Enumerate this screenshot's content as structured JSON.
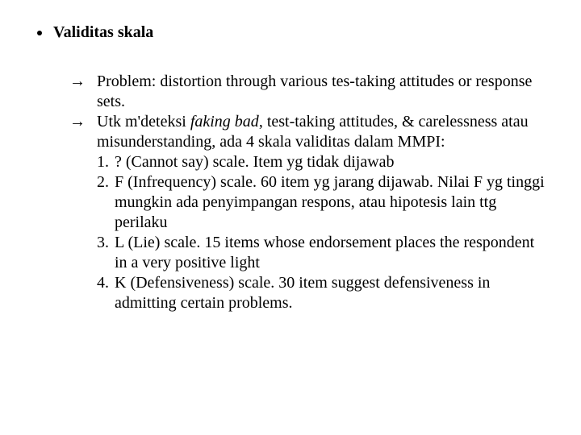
{
  "colors": {
    "background": "#ffffff",
    "text": "#000000"
  },
  "typography": {
    "font_family": "Times New Roman",
    "base_font_size_pt": 15,
    "line_height": 1.25,
    "title_weight": "bold"
  },
  "heading": {
    "text": "Validitas skala"
  },
  "items": [
    {
      "arrow": "→",
      "text": "Problem: distortion through various tes-taking attitudes or response sets."
    },
    {
      "arrow": "→",
      "lead_a": "Utk m'deteksi ",
      "lead_italic": "faking bad",
      "lead_b": ", test-taking attitudes, & carelessness atau misunderstanding, ada 4 skala validitas dalam MMPI:",
      "numbered": [
        {
          "n": "1.",
          "text": "? (Cannot say) scale. Item yg tidak dijawab"
        },
        {
          "n": "2.",
          "text": "F (Infrequency) scale. 60 item yg jarang dijawab. Nilai F yg tinggi mungkin ada penyimpangan respons, atau hipotesis lain ttg perilaku"
        },
        {
          "n": "3.",
          "text": "L (Lie) scale. 15 items whose endorsement places the respondent in a very positive light"
        },
        {
          "n": "4.",
          "text": "K (Defensiveness) scale. 30 item suggest defensiveness in admitting certain problems."
        }
      ]
    }
  ]
}
